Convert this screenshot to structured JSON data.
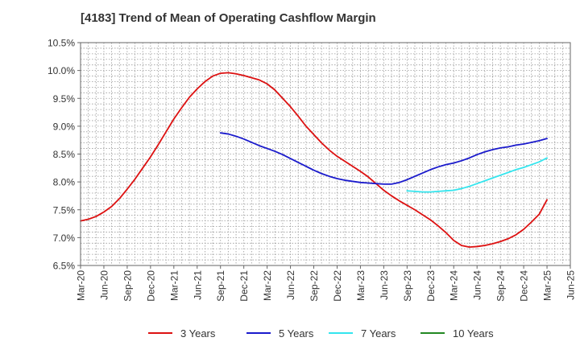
{
  "chart_data": {
    "type": "line",
    "title": "[4183]  Trend of Mean of Operating Cashflow Margin",
    "xlabel": "",
    "ylabel": "",
    "x_ticks": [
      "Mar-20",
      "Jun-20",
      "Sep-20",
      "Dec-20",
      "Mar-21",
      "Jun-21",
      "Sep-21",
      "Dec-21",
      "Mar-22",
      "Jun-22",
      "Sep-22",
      "Dec-22",
      "Mar-23",
      "Jun-23",
      "Sep-23",
      "Dec-23",
      "Mar-24",
      "Jun-24",
      "Sep-24",
      "Dec-24",
      "Mar-25",
      "Jun-25"
    ],
    "y_ticks": [
      "6.5%",
      "7.0%",
      "7.5%",
      "8.0%",
      "8.5%",
      "9.0%",
      "9.5%",
      "10.0%",
      "10.5%"
    ],
    "ylim": [
      6.5,
      10.5
    ],
    "grid": true,
    "legend_position": "bottom",
    "series": [
      {
        "name": "3 Years",
        "color": "#dd1111",
        "x": [
          "Mar-20",
          "Apr-20",
          "May-20",
          "Jun-20",
          "Jul-20",
          "Aug-20",
          "Sep-20",
          "Oct-20",
          "Nov-20",
          "Dec-20",
          "Jan-21",
          "Feb-21",
          "Mar-21",
          "Apr-21",
          "May-21",
          "Jun-21",
          "Jul-21",
          "Aug-21",
          "Sep-21",
          "Oct-21",
          "Nov-21",
          "Dec-21",
          "Jan-22",
          "Feb-22",
          "Mar-22",
          "Apr-22",
          "May-22",
          "Jun-22",
          "Jul-22",
          "Aug-22",
          "Sep-22",
          "Oct-22",
          "Nov-22",
          "Dec-22",
          "Jan-23",
          "Feb-23",
          "Mar-23",
          "Apr-23",
          "May-23",
          "Jun-23",
          "Jul-23",
          "Aug-23",
          "Sep-23",
          "Oct-23",
          "Nov-23",
          "Dec-23",
          "Jan-24",
          "Feb-24",
          "Mar-24",
          "Apr-24",
          "May-24",
          "Jun-24",
          "Jul-24",
          "Aug-24",
          "Sep-24",
          "Oct-24",
          "Nov-24",
          "Dec-24",
          "Jan-25",
          "Feb-25",
          "Mar-25"
        ],
        "values": [
          7.3,
          7.33,
          7.38,
          7.46,
          7.56,
          7.7,
          7.87,
          8.05,
          8.25,
          8.45,
          8.67,
          8.9,
          9.13,
          9.33,
          9.52,
          9.67,
          9.8,
          9.9,
          9.95,
          9.96,
          9.94,
          9.91,
          9.87,
          9.83,
          9.76,
          9.65,
          9.5,
          9.35,
          9.18,
          9.0,
          8.85,
          8.7,
          8.57,
          8.46,
          8.37,
          8.28,
          8.19,
          8.09,
          7.97,
          7.85,
          7.75,
          7.66,
          7.58,
          7.5,
          7.41,
          7.32,
          7.21,
          7.09,
          6.95,
          6.86,
          6.83,
          6.84,
          6.86,
          6.89,
          6.93,
          6.98,
          7.05,
          7.15,
          7.28,
          7.42,
          7.68
        ]
      },
      {
        "name": "5 Years",
        "color": "#1a1acc",
        "x": [
          "Sep-21",
          "Oct-21",
          "Nov-21",
          "Dec-21",
          "Jan-22",
          "Feb-22",
          "Mar-22",
          "Apr-22",
          "May-22",
          "Jun-22",
          "Jul-22",
          "Aug-22",
          "Sep-22",
          "Oct-22",
          "Nov-22",
          "Dec-22",
          "Jan-23",
          "Feb-23",
          "Mar-23",
          "Apr-23",
          "May-23",
          "Jun-23",
          "Jul-23",
          "Aug-23",
          "Sep-23",
          "Oct-23",
          "Nov-23",
          "Dec-23",
          "Jan-24",
          "Feb-24",
          "Mar-24",
          "Apr-24",
          "May-24",
          "Jun-24",
          "Jul-24",
          "Aug-24",
          "Sep-24",
          "Oct-24",
          "Nov-24",
          "Dec-24",
          "Jan-25",
          "Feb-25",
          "Mar-25"
        ],
        "values": [
          8.88,
          8.86,
          8.82,
          8.77,
          8.71,
          8.65,
          8.6,
          8.55,
          8.49,
          8.42,
          8.35,
          8.28,
          8.21,
          8.15,
          8.1,
          8.06,
          8.03,
          8.01,
          7.99,
          7.98,
          7.97,
          7.96,
          7.96,
          7.99,
          8.04,
          8.1,
          8.16,
          8.22,
          8.27,
          8.31,
          8.34,
          8.38,
          8.43,
          8.49,
          8.54,
          8.58,
          8.61,
          8.63,
          8.66,
          8.68,
          8.71,
          8.74,
          8.78
        ]
      },
      {
        "name": "7 Years",
        "color": "#33e5ee",
        "x": [
          "Sep-23",
          "Oct-23",
          "Nov-23",
          "Dec-23",
          "Jan-24",
          "Feb-24",
          "Mar-24",
          "Apr-24",
          "May-24",
          "Jun-24",
          "Jul-24",
          "Aug-24",
          "Sep-24",
          "Oct-24",
          "Nov-24",
          "Dec-24",
          "Jan-25",
          "Feb-25",
          "Mar-25"
        ],
        "values": [
          7.84,
          7.83,
          7.82,
          7.82,
          7.83,
          7.84,
          7.85,
          7.88,
          7.92,
          7.97,
          8.02,
          8.07,
          8.12,
          8.17,
          8.22,
          8.26,
          8.31,
          8.36,
          8.43
        ]
      },
      {
        "name": "10 Years",
        "color": "#228822",
        "x": [],
        "values": []
      }
    ]
  }
}
